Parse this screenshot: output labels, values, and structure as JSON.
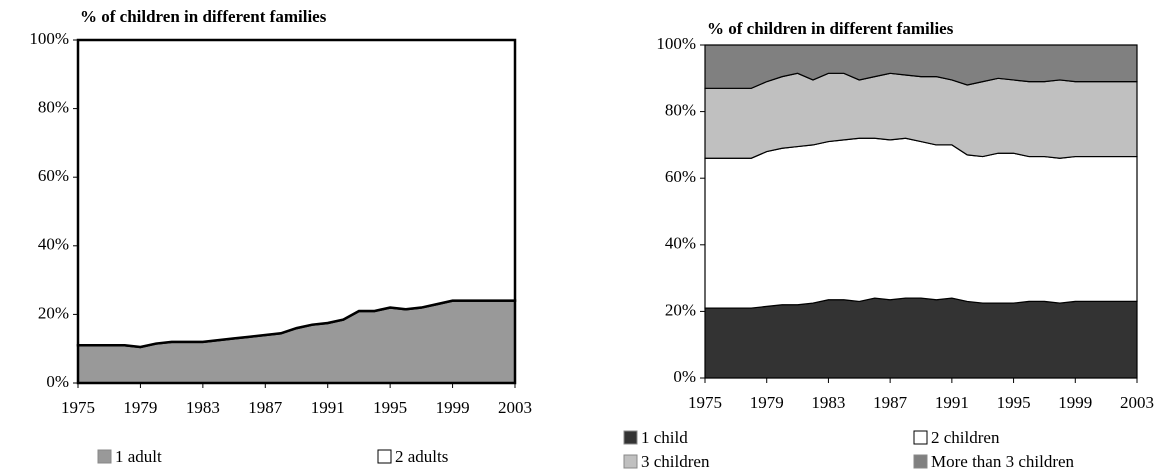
{
  "chart_data": [
    {
      "type": "stacked-area",
      "title": "% of children in different families",
      "x": [
        1975,
        1976,
        1977,
        1978,
        1979,
        1980,
        1981,
        1982,
        1983,
        1984,
        1985,
        1986,
        1987,
        1988,
        1989,
        1990,
        1991,
        1992,
        1993,
        1994,
        1995,
        1996,
        1997,
        1998,
        1999,
        2000,
        2001,
        2002,
        2003
      ],
      "series": [
        {
          "name": "1 adult",
          "color": "#999999",
          "values": [
            11,
            11,
            11,
            11,
            10.5,
            11.5,
            12,
            12,
            12,
            12.5,
            13,
            13.5,
            14,
            14.5,
            16,
            17,
            17.5,
            18.5,
            21,
            21,
            22,
            21.5,
            22,
            23,
            24,
            24,
            24,
            24,
            24
          ]
        },
        {
          "name": "2 adults",
          "color": "#ffffff",
          "values": [
            89,
            89,
            89,
            89,
            89.5,
            88.5,
            88,
            88,
            88,
            87.5,
            87,
            86.5,
            86,
            85.5,
            84,
            83,
            82.5,
            81.5,
            79,
            79,
            78,
            78.5,
            78,
            77,
            76,
            76,
            76,
            76,
            76
          ]
        }
      ],
      "xlim": [
        1975,
        2003
      ],
      "xticks": [
        1975,
        1979,
        1983,
        1987,
        1991,
        1995,
        1999,
        2003
      ],
      "ylim": [
        0,
        100
      ],
      "yticks": [
        {
          "value": 0,
          "label": "0%"
        },
        {
          "value": 20,
          "label": "20%"
        },
        {
          "value": 40,
          "label": "40%"
        },
        {
          "value": 60,
          "label": "60%"
        },
        {
          "value": 80,
          "label": "80%"
        },
        {
          "value": 100,
          "label": "100%"
        }
      ],
      "legend": "bottom"
    },
    {
      "type": "stacked-area",
      "title": "% of children in different families",
      "x": [
        1975,
        1976,
        1977,
        1978,
        1979,
        1980,
        1981,
        1982,
        1983,
        1984,
        1985,
        1986,
        1987,
        1988,
        1989,
        1990,
        1991,
        1992,
        1993,
        1994,
        1995,
        1996,
        1997,
        1998,
        1999,
        2000,
        2001,
        2002,
        2003
      ],
      "series": [
        {
          "name": "1 child",
          "color": "#333333",
          "values": [
            21,
            21,
            21,
            21,
            21.5,
            22,
            22,
            22.5,
            23.5,
            23.5,
            23,
            24,
            23.5,
            24,
            24,
            23.5,
            24,
            23,
            22.5,
            22.5,
            22.5,
            23,
            23,
            22.5,
            23,
            23,
            23,
            23,
            23
          ]
        },
        {
          "name": "2 children",
          "color": "#ffffff",
          "values": [
            45,
            45,
            45,
            45,
            46.5,
            47,
            47.5,
            47.5,
            47.5,
            48,
            49,
            48,
            48,
            48,
            47,
            46.5,
            46,
            44,
            44,
            45,
            45,
            43.5,
            43.5,
            43.5,
            43.5,
            43.5,
            43.5,
            43.5,
            43.5
          ]
        },
        {
          "name": "3 children",
          "color": "#c0c0c0",
          "values": [
            21,
            21,
            21,
            21,
            21,
            21.5,
            22,
            19.5,
            20.5,
            20,
            17.5,
            18.5,
            20,
            19,
            19.5,
            20.5,
            19.5,
            21,
            22.5,
            22.5,
            22,
            22.5,
            22.5,
            23.5,
            22.5,
            22.5,
            22.5,
            22.5,
            22.5
          ]
        },
        {
          "name": "More than 3 children",
          "color": "#808080",
          "values": [
            13,
            13,
            13,
            13,
            11,
            9.5,
            8.5,
            10.5,
            8.5,
            8.5,
            10.5,
            9.5,
            8.5,
            9,
            9.5,
            9.5,
            10.5,
            12,
            11,
            10,
            10.5,
            11,
            11,
            10.5,
            11,
            11,
            11,
            11,
            11
          ]
        }
      ],
      "xlim": [
        1975,
        2003
      ],
      "xticks": [
        1975,
        1979,
        1983,
        1987,
        1991,
        1995,
        1999,
        2003
      ],
      "ylim": [
        0,
        100
      ],
      "yticks": [
        {
          "value": 0,
          "label": "0%"
        },
        {
          "value": 20,
          "label": "20%"
        },
        {
          "value": 40,
          "label": "40%"
        },
        {
          "value": 60,
          "label": "60%"
        },
        {
          "value": 80,
          "label": "80%"
        },
        {
          "value": 100,
          "label": "100%"
        }
      ],
      "legend": "bottom"
    }
  ]
}
